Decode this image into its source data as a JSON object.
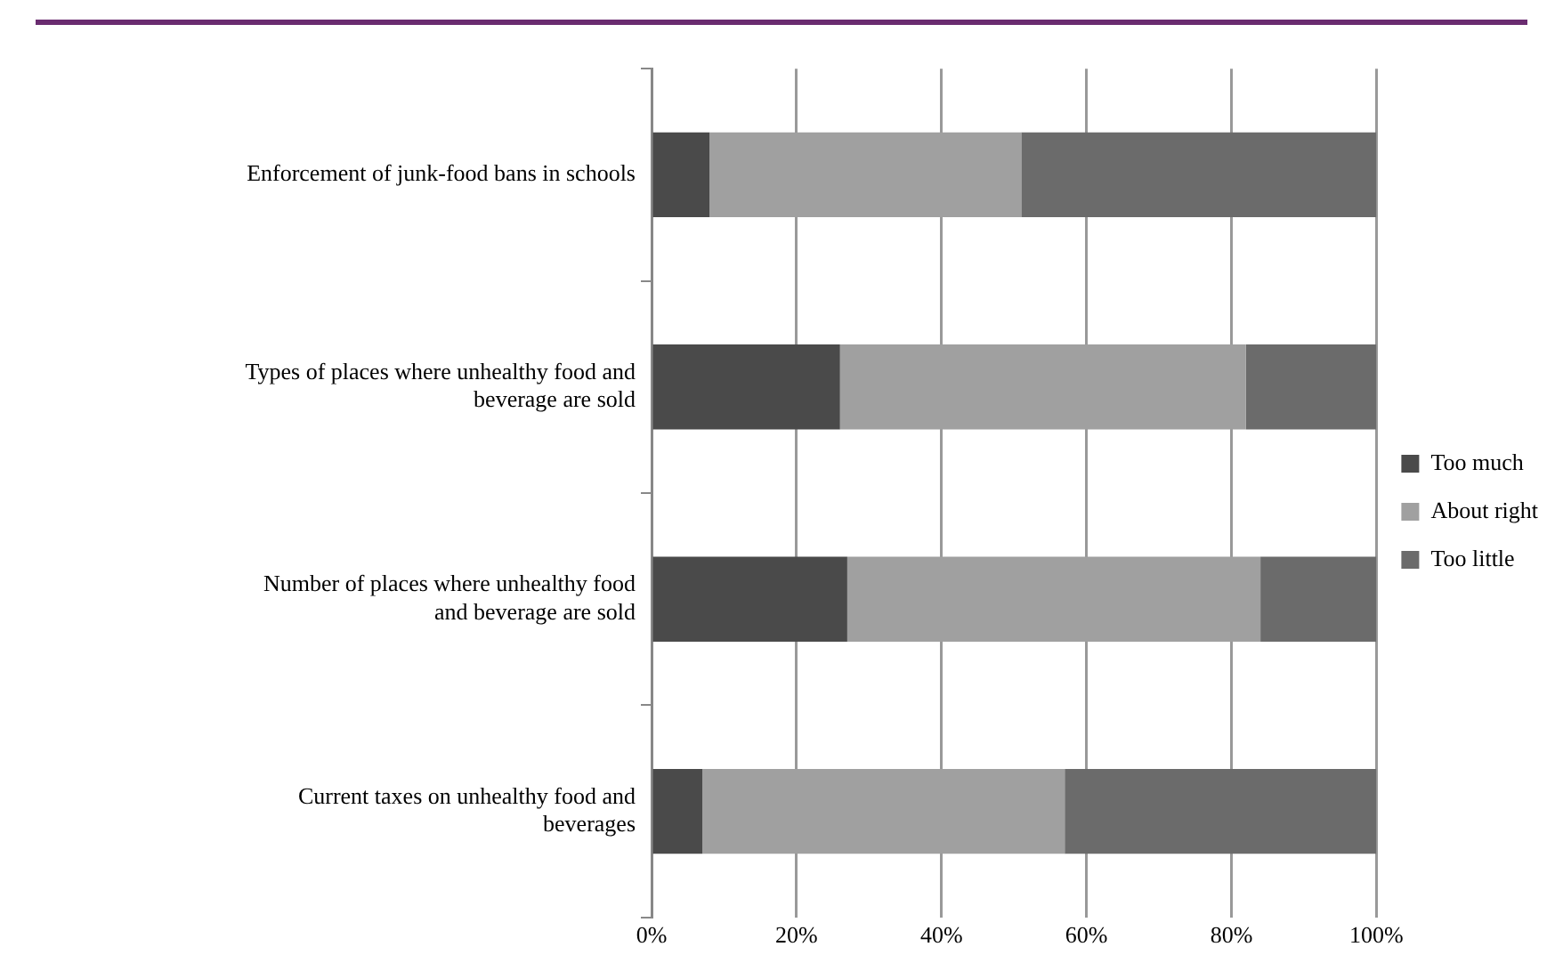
{
  "chart_data": {
    "type": "bar",
    "orientation": "horizontal",
    "stacked": true,
    "categories": [
      "Enforcement of junk-food bans in schools",
      "Types of places where unhealthy food and beverage are sold",
      "Number of places where unhealthy food and beverage are sold",
      "Current taxes on unhealthy food and beverages"
    ],
    "series": [
      {
        "name": "Too much",
        "color": "#4a4a4a",
        "values": [
          8,
          26,
          27,
          7
        ]
      },
      {
        "name": "About right",
        "color": "#a0a0a0",
        "values": [
          43,
          56,
          57,
          50
        ]
      },
      {
        "name": "Too little",
        "color": "#6b6b6b",
        "values": [
          49,
          18,
          16,
          43
        ]
      }
    ],
    "xlim": [
      0,
      100
    ],
    "xticks": [
      {
        "value": 0,
        "label": "0%"
      },
      {
        "value": 20,
        "label": "20%"
      },
      {
        "value": 40,
        "label": "40%"
      },
      {
        "value": 60,
        "label": "60%"
      },
      {
        "value": 80,
        "label": "80%"
      },
      {
        "value": 100,
        "label": "100%"
      }
    ],
    "grid": "x",
    "legend": "right"
  }
}
